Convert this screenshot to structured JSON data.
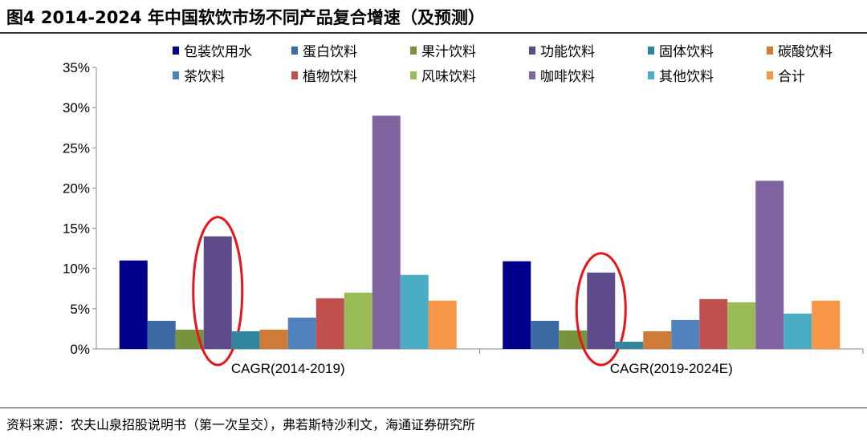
{
  "title": "图4  2014-2024 年中国软饮市场不同产品复合增速（及预测）",
  "source": "资料来源：农夫山泉招股说明书（第一次呈交），弗若斯特沙利文，海通证券研究所",
  "chart_data": {
    "type": "bar",
    "categories": [
      "CAGR(2014-2019)",
      "CAGR(2019-2024E)"
    ],
    "ylim": [
      0,
      35
    ],
    "yticks": [
      "0%",
      "5%",
      "10%",
      "15%",
      "20%",
      "25%",
      "30%",
      "35%"
    ],
    "grid": false,
    "legend": "top",
    "highlighted_series": "功能饮料",
    "highlight_color": "#E8141B",
    "series": [
      {
        "name": "包装饮用水",
        "color": "#00008B",
        "values": [
          11.0,
          10.9
        ]
      },
      {
        "name": "蛋白饮料",
        "color": "#3C6AA4",
        "values": [
          3.5,
          3.5
        ]
      },
      {
        "name": "果汁饮料",
        "color": "#77933C",
        "values": [
          2.4,
          2.3
        ]
      },
      {
        "name": "功能饮料",
        "color": "#5E4B8B",
        "values": [
          14.0,
          9.5
        ]
      },
      {
        "name": "固体饮料",
        "color": "#31859C",
        "values": [
          2.2,
          0.9
        ]
      },
      {
        "name": "碳酸饮料",
        "color": "#CD7B36",
        "values": [
          2.4,
          2.2
        ]
      },
      {
        "name": "茶饮料",
        "color": "#4F81BD",
        "values": [
          3.9,
          3.6
        ]
      },
      {
        "name": "植物饮料",
        "color": "#C0504D",
        "values": [
          6.3,
          6.2
        ]
      },
      {
        "name": "风味饮料",
        "color": "#9BBB59",
        "values": [
          7.0,
          5.8
        ]
      },
      {
        "name": "咖啡饮料",
        "color": "#8064A2",
        "values": [
          29.0,
          20.9
        ]
      },
      {
        "name": "其他饮料",
        "color": "#4BACC6",
        "values": [
          9.2,
          4.4
        ]
      },
      {
        "name": "合计",
        "color": "#F79646",
        "values": [
          6.0,
          6.0
        ]
      }
    ]
  }
}
